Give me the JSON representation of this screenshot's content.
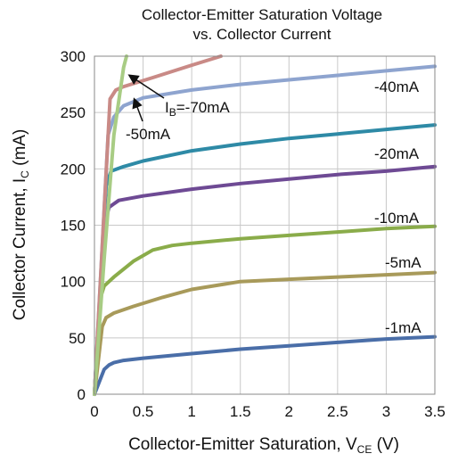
{
  "chart_data": {
    "type": "line",
    "title_lines": [
      "Collector-Emitter Saturation Voltage",
      "vs. Collector Current"
    ],
    "xlabel_main": "Collector-Emitter Saturation, V",
    "xlabel_sub": "CE",
    "xlabel_unit": " (V)",
    "ylabel_main": "Collector Current, I",
    "ylabel_sub": "C",
    "ylabel_unit": " (mA)",
    "xlim": [
      0,
      3.5
    ],
    "ylim": [
      0,
      300
    ],
    "x_ticks": [
      {
        "value": 0,
        "label": "0"
      },
      {
        "value": 0.5,
        "label": "0.5"
      },
      {
        "value": 1,
        "label": "1"
      },
      {
        "value": 1.5,
        "label": "1.5"
      },
      {
        "value": 2,
        "label": "2"
      },
      {
        "value": 2.5,
        "label": "2.5"
      },
      {
        "value": 3,
        "label": "3"
      },
      {
        "value": 3.5,
        "label": "3.5"
      }
    ],
    "y_ticks": [
      {
        "value": 0,
        "label": "0"
      },
      {
        "value": 50,
        "label": "50"
      },
      {
        "value": 100,
        "label": "100"
      },
      {
        "value": 150,
        "label": "150"
      },
      {
        "value": 200,
        "label": "200"
      },
      {
        "value": 250,
        "label": "250"
      },
      {
        "value": 300,
        "label": "300"
      }
    ],
    "grid": true,
    "series": [
      {
        "name": "-1mA",
        "color": "#4a6ea8",
        "x": [
          0,
          0.1,
          0.15,
          0.2,
          0.3,
          0.5,
          1,
          1.5,
          2,
          2.5,
          3,
          3.5
        ],
        "y": [
          0,
          22,
          26,
          28,
          30,
          32,
          36,
          40,
          43,
          46,
          49,
          51
        ]
      },
      {
        "name": "-5mA",
        "color": "#a89a5a",
        "x": [
          0,
          0.08,
          0.12,
          0.2,
          0.4,
          0.7,
          1,
          1.5,
          2,
          2.5,
          3,
          3.5
        ],
        "y": [
          0,
          60,
          68,
          72,
          78,
          86,
          93,
          100,
          102,
          104,
          106,
          108
        ]
      },
      {
        "name": "-10mA",
        "color": "#8aac4a",
        "x": [
          0,
          0.06,
          0.1,
          0.2,
          0.4,
          0.6,
          0.8,
          1,
          1.5,
          2,
          2.5,
          3,
          3.5
        ],
        "y": [
          0,
          85,
          96,
          104,
          118,
          128,
          132,
          134,
          138,
          141,
          144,
          147,
          149
        ]
      },
      {
        "name": "-20mA",
        "color": "#6e4a94",
        "x": [
          0,
          0.1,
          0.15,
          0.25,
          0.5,
          1,
          1.5,
          2,
          2.5,
          3,
          3.5
        ],
        "y": [
          0,
          150,
          166,
          172,
          176,
          182,
          187,
          191,
          195,
          198,
          202
        ]
      },
      {
        "name": "-40mA",
        "color": "#2e8aa6",
        "x": [
          0,
          0.12,
          0.17,
          0.3,
          0.5,
          1,
          1.5,
          2,
          2.5,
          3,
          3.5
        ],
        "y": [
          0,
          185,
          198,
          202,
          207,
          216,
          222,
          227,
          231,
          235,
          239
        ]
      },
      {
        "name": "-50mA",
        "color": "#8ea4cf",
        "x": [
          0,
          0.14,
          0.2,
          0.3,
          0.5,
          1,
          1.5,
          2,
          2.5,
          3,
          3.5
        ],
        "y": [
          0,
          230,
          246,
          256,
          263,
          270,
          275,
          279,
          283,
          287,
          291
        ]
      },
      {
        "name": "IB=-70mA",
        "color": "#c98a86",
        "x": [
          0,
          0.16,
          0.22,
          0.3,
          0.6,
          1,
          1.3
        ],
        "y": [
          0,
          262,
          270,
          273,
          281,
          292,
          300
        ]
      },
      {
        "name": "",
        "color": "#a8cc84",
        "x": [
          0,
          0.1,
          0.2,
          0.3,
          0.33
        ],
        "y": [
          0,
          120,
          230,
          290,
          300
        ]
      }
    ],
    "annotations": [
      {
        "text_main": "I",
        "text_sub": "B",
        "text_rest": "=-70mA"
      },
      {
        "text_main": "-50mA"
      }
    ],
    "series_labels": [
      "-40mA",
      "-20mA",
      "-10mA",
      "-5mA",
      "-1mA"
    ]
  }
}
